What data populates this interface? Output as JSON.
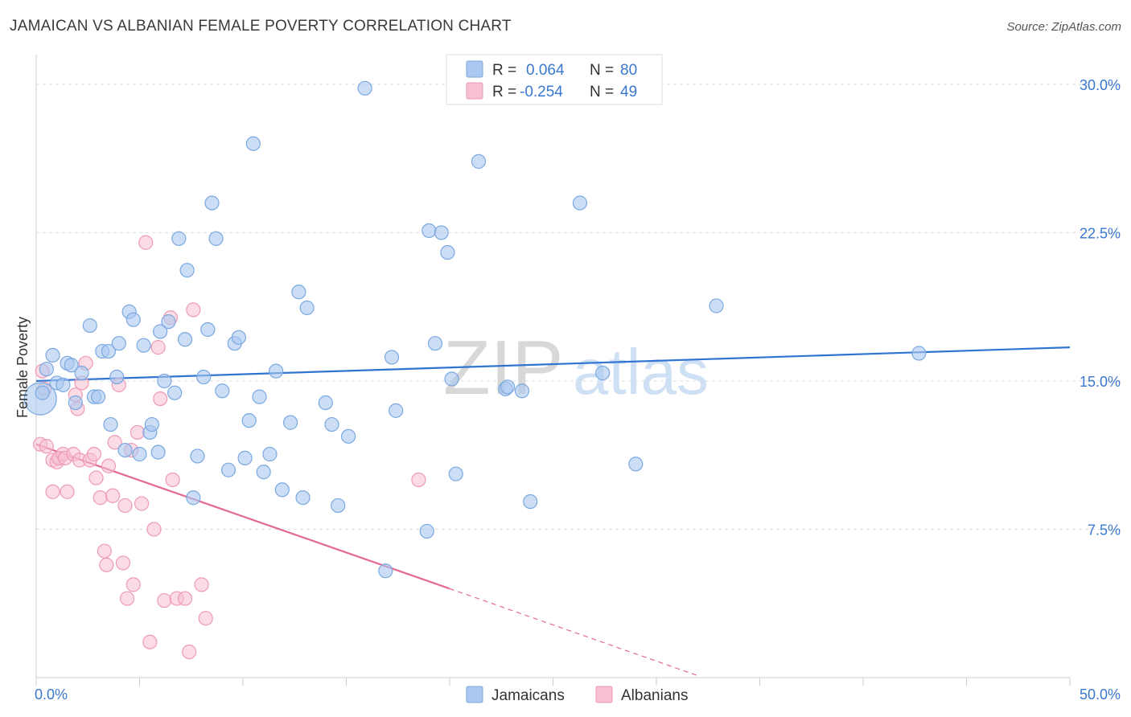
{
  "title": "JAMAICAN VS ALBANIAN FEMALE POVERTY CORRELATION CHART",
  "source": "Source: ZipAtlas.com",
  "watermark": {
    "bold": "ZIP",
    "light": "atlas"
  },
  "legend_top": [
    {
      "r_label": "R =",
      "r_value": "0.064",
      "n_label": "N =",
      "n_value": "80"
    },
    {
      "r_label": "R =",
      "r_value": "-0.254",
      "n_label": "N =",
      "n_value": "49"
    }
  ],
  "legend_bottom": [
    "Jamaicans",
    "Albanians"
  ],
  "colors": {
    "jamaican_fill": "#aac8f0",
    "jamaican_stroke": "#7aa8e0",
    "jamaican_line": "#2f74d0",
    "albanian_fill": "#f7bfd0",
    "albanian_stroke": "#ee9ab5",
    "albanian_line": "#e36a94",
    "accent_text": "#3a78d0",
    "grid": "#dddddd"
  },
  "chart_data": {
    "type": "scatter",
    "title": "JAMAICAN VS ALBANIAN FEMALE POVERTY CORRELATION CHART",
    "xlabel": "",
    "ylabel": "Female Poverty",
    "xlim": [
      0,
      50
    ],
    "ylim": [
      0,
      31.5
    ],
    "x_tick_labels": [
      "0.0%",
      "50.0%"
    ],
    "y_ticks": [
      7.5,
      15.0,
      22.5,
      30.0
    ],
    "y_tick_labels": [
      "7.5%",
      "15.0%",
      "22.5%",
      "30.0%"
    ],
    "grid": true,
    "legend_position": "bottom-center",
    "series": [
      {
        "name": "Jamaicans",
        "R": 0.064,
        "N": 80,
        "trend": {
          "x": [
            0,
            50
          ],
          "y": [
            15.0,
            16.7
          ]
        },
        "points": [
          [
            0.2,
            14.1
          ],
          [
            0.3,
            14.4
          ],
          [
            0.5,
            15.6
          ],
          [
            0.8,
            16.3
          ],
          [
            1.0,
            14.9
          ],
          [
            1.3,
            14.8
          ],
          [
            1.5,
            15.9
          ],
          [
            1.7,
            15.8
          ],
          [
            1.9,
            13.9
          ],
          [
            2.2,
            15.4
          ],
          [
            2.6,
            17.8
          ],
          [
            2.8,
            14.2
          ],
          [
            3.0,
            14.2
          ],
          [
            3.2,
            16.5
          ],
          [
            3.5,
            16.5
          ],
          [
            3.6,
            12.8
          ],
          [
            3.9,
            15.2
          ],
          [
            4.0,
            16.9
          ],
          [
            4.3,
            11.5
          ],
          [
            4.5,
            18.5
          ],
          [
            4.7,
            18.1
          ],
          [
            5.0,
            11.3
          ],
          [
            5.2,
            16.8
          ],
          [
            5.5,
            12.4
          ],
          [
            5.6,
            12.8
          ],
          [
            5.9,
            11.4
          ],
          [
            6.0,
            17.5
          ],
          [
            6.2,
            15.0
          ],
          [
            6.4,
            18.0
          ],
          [
            6.7,
            14.4
          ],
          [
            6.9,
            22.2
          ],
          [
            7.2,
            17.1
          ],
          [
            7.3,
            20.6
          ],
          [
            7.6,
            9.1
          ],
          [
            7.8,
            11.2
          ],
          [
            8.1,
            15.2
          ],
          [
            8.3,
            17.6
          ],
          [
            8.5,
            24.0
          ],
          [
            8.7,
            22.2
          ],
          [
            9.0,
            14.5
          ],
          [
            9.3,
            10.5
          ],
          [
            9.6,
            16.9
          ],
          [
            9.8,
            17.2
          ],
          [
            10.1,
            11.1
          ],
          [
            10.3,
            13.0
          ],
          [
            10.5,
            27.0
          ],
          [
            10.8,
            14.2
          ],
          [
            11.0,
            10.4
          ],
          [
            11.3,
            11.3
          ],
          [
            11.6,
            15.5
          ],
          [
            11.9,
            9.5
          ],
          [
            12.3,
            12.9
          ],
          [
            12.7,
            19.5
          ],
          [
            12.9,
            9.1
          ],
          [
            13.1,
            18.7
          ],
          [
            14.3,
            12.8
          ],
          [
            14.6,
            8.7
          ],
          [
            15.1,
            12.2
          ],
          [
            15.9,
            29.8
          ],
          [
            16.9,
            5.4
          ],
          [
            17.2,
            16.2
          ],
          [
            17.4,
            13.5
          ],
          [
            18.9,
            7.4
          ],
          [
            19.0,
            22.6
          ],
          [
            19.3,
            16.9
          ],
          [
            19.6,
            22.5
          ],
          [
            19.9,
            21.5
          ],
          [
            20.1,
            15.1
          ],
          [
            20.3,
            10.3
          ],
          [
            21.4,
            26.1
          ],
          [
            22.7,
            14.6
          ],
          [
            22.8,
            14.7
          ],
          [
            23.5,
            14.5
          ],
          [
            23.9,
            8.9
          ],
          [
            26.3,
            24.0
          ],
          [
            27.4,
            15.4
          ],
          [
            29.0,
            10.8
          ],
          [
            32.9,
            18.8
          ],
          [
            42.7,
            16.4
          ],
          [
            14.0,
            13.9
          ]
        ]
      },
      {
        "name": "Albanians",
        "R": -0.254,
        "N": 49,
        "trend": {
          "x": [
            0,
            20
          ],
          "y": [
            11.8,
            4.5
          ]
        },
        "trend_dashed": {
          "x": [
            20,
            32
          ],
          "y": [
            4.5,
            0.1
          ]
        },
        "points": [
          [
            0.2,
            11.8
          ],
          [
            0.3,
            15.5
          ],
          [
            0.4,
            14.6
          ],
          [
            0.5,
            11.7
          ],
          [
            0.8,
            11.0
          ],
          [
            0.8,
            9.4
          ],
          [
            1.0,
            10.9
          ],
          [
            1.1,
            11.1
          ],
          [
            1.3,
            11.3
          ],
          [
            1.4,
            11.1
          ],
          [
            1.5,
            9.4
          ],
          [
            1.8,
            11.3
          ],
          [
            1.9,
            14.3
          ],
          [
            2.0,
            13.6
          ],
          [
            2.1,
            11.0
          ],
          [
            2.2,
            14.9
          ],
          [
            2.4,
            15.9
          ],
          [
            2.6,
            11.0
          ],
          [
            2.8,
            11.3
          ],
          [
            2.9,
            10.1
          ],
          [
            3.1,
            9.1
          ],
          [
            3.3,
            6.4
          ],
          [
            3.4,
            5.7
          ],
          [
            3.5,
            10.7
          ],
          [
            3.7,
            9.2
          ],
          [
            3.8,
            11.9
          ],
          [
            4.0,
            14.8
          ],
          [
            4.2,
            5.8
          ],
          [
            4.3,
            8.7
          ],
          [
            4.4,
            4.0
          ],
          [
            4.6,
            11.5
          ],
          [
            4.7,
            4.7
          ],
          [
            4.9,
            12.4
          ],
          [
            5.1,
            8.8
          ],
          [
            5.3,
            22.0
          ],
          [
            5.5,
            1.8
          ],
          [
            5.7,
            7.5
          ],
          [
            5.9,
            16.7
          ],
          [
            6.0,
            14.1
          ],
          [
            6.2,
            3.9
          ],
          [
            6.5,
            18.2
          ],
          [
            6.6,
            10.0
          ],
          [
            6.8,
            4.0
          ],
          [
            7.2,
            4.0
          ],
          [
            7.4,
            1.3
          ],
          [
            7.6,
            18.6
          ],
          [
            8.0,
            4.7
          ],
          [
            8.2,
            3.0
          ],
          [
            18.5,
            10.0
          ]
        ]
      }
    ]
  }
}
